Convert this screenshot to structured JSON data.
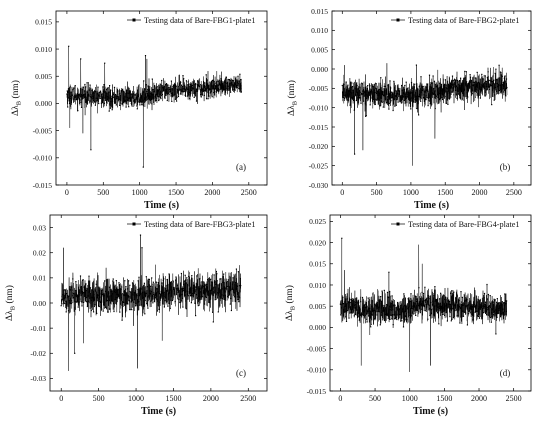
{
  "chart_data": [
    {
      "type": "scatter",
      "panel_label": "(a)",
      "xlabel": "Time (s)",
      "ylabel": "Δλ",
      "ylabel_sub": "B",
      "ylabel_unit": " (nm)",
      "xlim": [
        -150,
        2750
      ],
      "ylim": [
        -0.015,
        0.017
      ],
      "xticks": [
        0,
        500,
        1000,
        1500,
        2000,
        2500
      ],
      "yticks": [
        -0.015,
        -0.01,
        -0.005,
        0.0,
        0.005,
        0.01,
        0.015
      ],
      "ytick_labels": [
        "-0.015",
        "-0.010",
        "-0.005",
        "0.000",
        "0.005",
        "0.010",
        "0.015"
      ],
      "legend": {
        "label": "Testing data of Bare-FBG1-plate1",
        "placement": "top-right"
      },
      "series": [
        {
          "x_start": 0,
          "x_end": 2400,
          "baseline": [
            [
              0,
              0.0015
            ],
            [
              900,
              0.001
            ],
            [
              1500,
              0.0025
            ],
            [
              2400,
              0.0035
            ]
          ],
          "band": 0.0024,
          "spikes": [
            [
              25,
              0.0105
            ],
            [
              190,
              0.0082
            ],
            [
              220,
              -0.0055
            ],
            [
              330,
              -0.0085
            ],
            [
              1050,
              -0.0117
            ],
            [
              1080,
              0.0088
            ],
            [
              1100,
              0.0082
            ],
            [
              520,
              0.0074
            ],
            [
              40,
              -0.0045
            ]
          ]
        }
      ]
    },
    {
      "type": "scatter",
      "panel_label": "(b)",
      "xlabel": "Time (s)",
      "ylabel": "Δλ",
      "ylabel_sub": "B",
      "ylabel_unit": " (nm)",
      "xlim": [
        -150,
        2750
      ],
      "ylim": [
        -0.03,
        0.015
      ],
      "xticks": [
        0,
        500,
        1000,
        1500,
        2000,
        2500
      ],
      "yticks": [
        -0.03,
        -0.025,
        -0.02,
        -0.015,
        -0.01,
        -0.005,
        0.0,
        0.005,
        0.01,
        0.015
      ],
      "ytick_labels": [
        "-0.030",
        "-0.025",
        "-0.020",
        "-0.015",
        "-0.010",
        "-0.005",
        "0.000",
        "0.005",
        "0.010",
        "0.015"
      ],
      "legend": {
        "label": "Testing data of Bare-FBG2-plate1",
        "placement": "top-right"
      },
      "series": [
        {
          "x_start": 0,
          "x_end": 2400,
          "baseline": [
            [
              0,
              -0.006
            ],
            [
              900,
              -0.007
            ],
            [
              1500,
              -0.0055
            ],
            [
              2400,
              -0.004
            ]
          ],
          "band": 0.0042,
          "spikes": [
            [
              30,
              0.001
            ],
            [
              180,
              -0.022
            ],
            [
              300,
              -0.021
            ],
            [
              1020,
              -0.025
            ],
            [
              1080,
              0.001
            ],
            [
              1350,
              -0.018
            ],
            [
              2200,
              0.0005
            ],
            [
              650,
              0.0015
            ]
          ]
        }
      ]
    },
    {
      "type": "scatter",
      "panel_label": "(c)",
      "xlabel": "Time (s)",
      "ylabel": "Δλ",
      "ylabel_sub": "B",
      "ylabel_unit": " (nm)",
      "xlim": [
        -150,
        2750
      ],
      "ylim": [
        -0.035,
        0.035
      ],
      "xticks": [
        0,
        500,
        1000,
        1500,
        2000,
        2500
      ],
      "yticks": [
        -0.03,
        -0.02,
        -0.01,
        0.0,
        0.01,
        0.02,
        0.03
      ],
      "ytick_labels": [
        "-0.03",
        "-0.02",
        "-0.01",
        "0.00",
        "0.01",
        "0.02",
        "0.03"
      ],
      "legend": {
        "label": "Testing data of Bare-FBG3-plate1",
        "placement": "top-right"
      },
      "series": [
        {
          "x_start": 0,
          "x_end": 2400,
          "baseline": [
            [
              0,
              0.003
            ],
            [
              900,
              0.0025
            ],
            [
              1500,
              0.0045
            ],
            [
              2400,
              0.005
            ]
          ],
          "band": 0.0085,
          "spikes": [
            [
              30,
              0.022
            ],
            [
              100,
              -0.027
            ],
            [
              180,
              -0.02
            ],
            [
              300,
              -0.016
            ],
            [
              1020,
              -0.026
            ],
            [
              1060,
              0.027
            ],
            [
              1080,
              0.022
            ],
            [
              1350,
              -0.015
            ],
            [
              600,
              0.014
            ]
          ]
        }
      ]
    },
    {
      "type": "scatter",
      "panel_label": "(d)",
      "xlabel": "Time (s)",
      "ylabel": "Δλ",
      "ylabel_sub": "B",
      "ylabel_unit": " (nm)",
      "xlim": [
        -150,
        2750
      ],
      "ylim": [
        -0.015,
        0.0265
      ],
      "xticks": [
        0,
        500,
        1000,
        1500,
        2000,
        2500
      ],
      "yticks": [
        -0.015,
        -0.01,
        -0.005,
        0.0,
        0.005,
        0.01,
        0.015,
        0.02,
        0.025
      ],
      "ytick_labels": [
        "-0.015",
        "-0.010",
        "-0.005",
        "0.000",
        "0.005",
        "0.010",
        "0.015",
        "0.020",
        "0.025"
      ],
      "legend": {
        "label": "Testing data of Bare-FBG4-plate1",
        "placement": "top-right"
      },
      "series": [
        {
          "x_start": 0,
          "x_end": 2400,
          "baseline": [
            [
              0,
              0.0045
            ],
            [
              900,
              0.004
            ],
            [
              1200,
              0.0055
            ],
            [
              2400,
              0.004
            ]
          ],
          "band": 0.0043,
          "spikes": [
            [
              20,
              0.021
            ],
            [
              60,
              0.0135
            ],
            [
              300,
              -0.009
            ],
            [
              1000,
              -0.0105
            ],
            [
              1130,
              0.0195
            ],
            [
              1180,
              0.015
            ],
            [
              1300,
              -0.009
            ],
            [
              700,
              0.013
            ]
          ]
        }
      ]
    }
  ]
}
